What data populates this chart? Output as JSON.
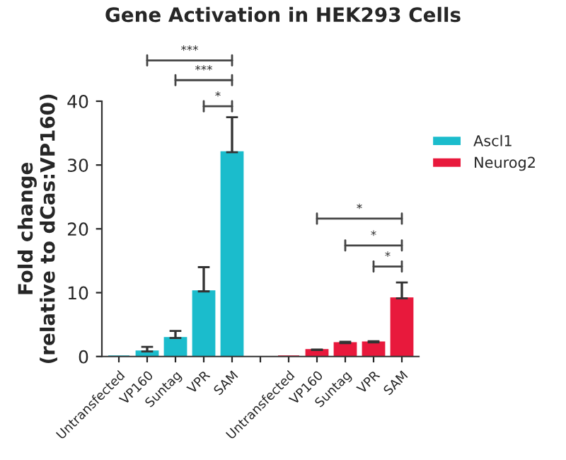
{
  "chart_data": {
    "type": "bar",
    "title": "Gene Activation in HEK293 Cells",
    "ylabel": "Fold change\n(relative to dCas:VP160)",
    "categories": [
      "Untransfected",
      "VP160",
      "Suntag",
      "VPR",
      "SAM",
      null,
      "Untransfected",
      "VP160",
      "Suntag",
      "VPR",
      "SAM"
    ],
    "series": [
      {
        "name": "Ascl1",
        "color": "#1bbccc",
        "values": [
          0,
          0.8,
          2.9,
          10.2,
          32,
          null,
          null,
          null,
          null,
          null,
          null
        ],
        "errors": [
          null,
          0.7,
          1.1,
          3.8,
          5.5,
          null,
          null,
          null,
          null,
          null,
          null
        ]
      },
      {
        "name": "Neurog2",
        "color": "#e8193c",
        "values": [
          null,
          null,
          null,
          null,
          null,
          null,
          0,
          1.0,
          2.1,
          2.2,
          9.1
        ],
        "errors": [
          null,
          null,
          null,
          null,
          null,
          null,
          null,
          0.1,
          0.2,
          0.2,
          2.5
        ]
      }
    ],
    "ylim": [
      0,
      40
    ],
    "yticks": [
      0,
      10,
      20,
      30,
      40
    ],
    "grid": false,
    "legend": "top right",
    "annotations": [
      "***",
      "***",
      "*",
      "*",
      "*",
      "*"
    ]
  }
}
